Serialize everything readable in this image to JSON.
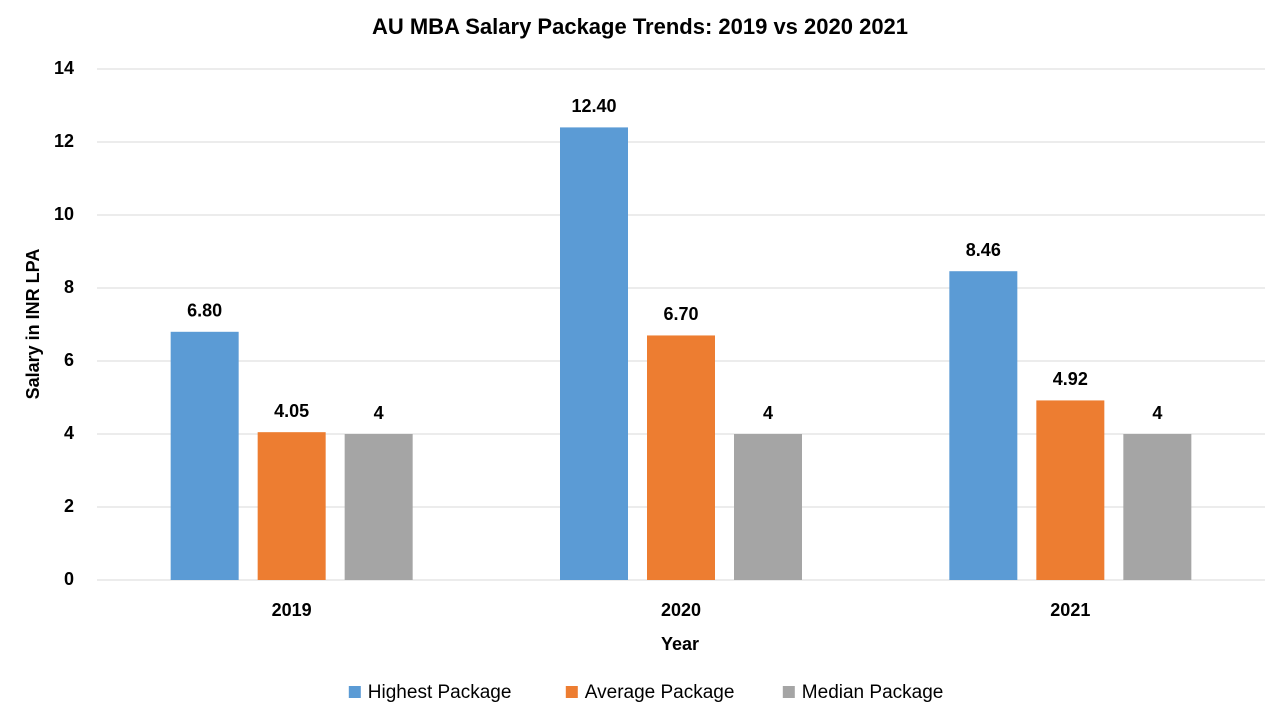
{
  "chart_data": {
    "type": "bar",
    "title": "AU MBA Salary Package Trends: 2019 vs 2020 2021",
    "x_label": "Year",
    "y_label": "Salary in INR LPA",
    "categories": [
      "2019",
      "2020",
      "2021"
    ],
    "series": [
      {
        "name": "Highest Package",
        "color": "#5b9bd5",
        "values": [
          6.8,
          12.4,
          8.46
        ],
        "value_labels": [
          "6.80",
          "12.40",
          "8.46"
        ]
      },
      {
        "name": "Average Package",
        "color": "#ed7d31",
        "values": [
          4.05,
          6.7,
          4.92
        ],
        "value_labels": [
          "4.05",
          "6.70",
          "4.92"
        ]
      },
      {
        "name": "Median Package",
        "color": "#a5a5a5",
        "values": [
          4,
          4,
          4
        ],
        "value_labels": [
          "4",
          "4",
          "4"
        ]
      }
    ],
    "ylim": [
      0,
      14
    ],
    "yticks": [
      0,
      2,
      4,
      6,
      8,
      10,
      12,
      14
    ],
    "grid": true,
    "legend": "bottom"
  }
}
